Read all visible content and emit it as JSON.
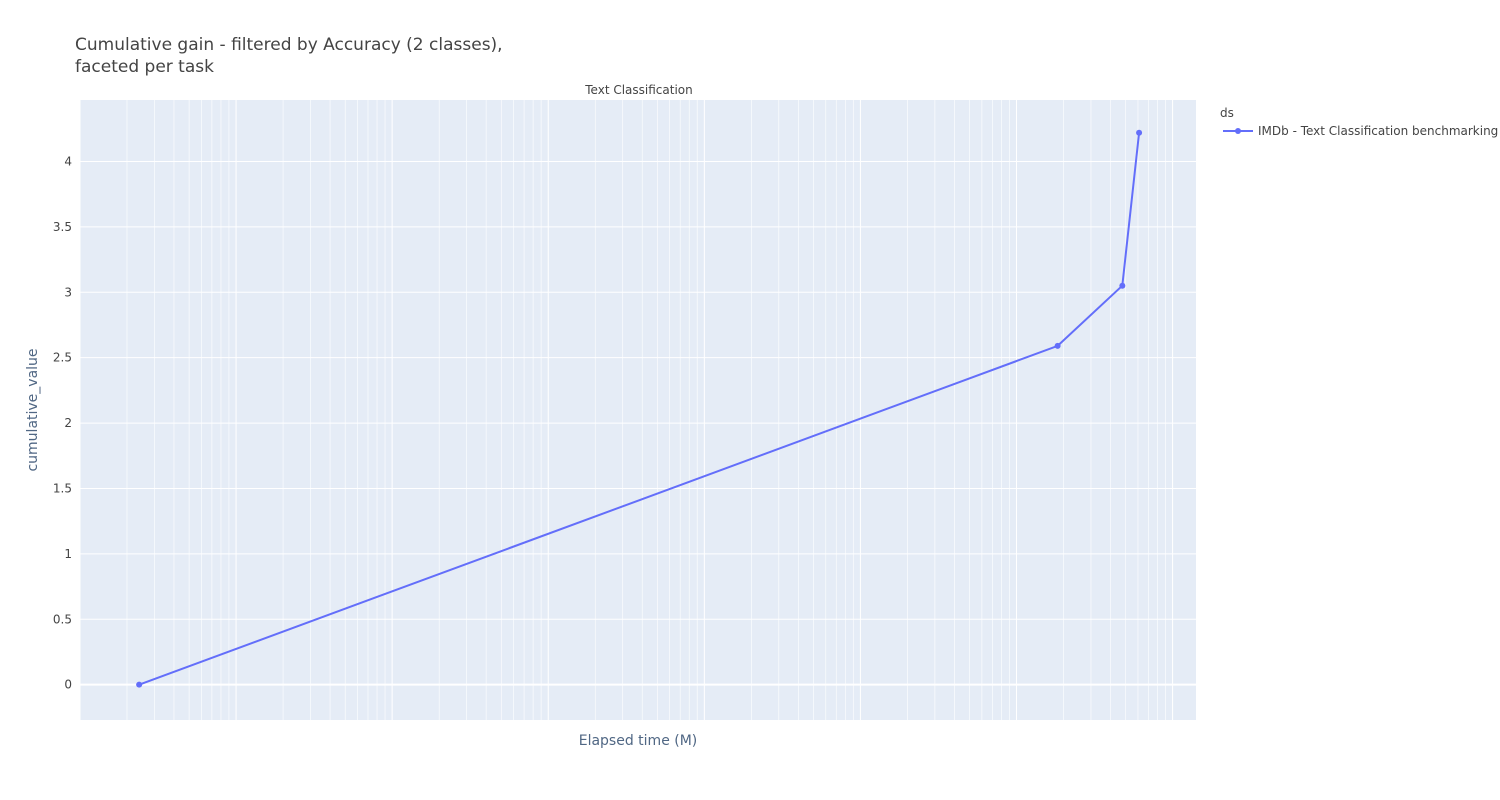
{
  "chart_data": {
    "type": "line",
    "title_lines": [
      "Cumulative gain - filtered by Accuracy (2 classes),",
      "faceted per task"
    ],
    "facet_title": "Text Classification",
    "xlabel": "Elapsed time (M)",
    "ylabel": "cumulative_value",
    "ylim": [
      -0.27,
      4.47
    ],
    "yticks": [
      0,
      0.5,
      1,
      1.5,
      2,
      2.5,
      3,
      3.5,
      4
    ],
    "xlim": [
      0,
      100
    ],
    "x_ticks_labeled": false,
    "grid": true,
    "legend": {
      "title": "ds",
      "placement": "top-right"
    },
    "series": [
      {
        "name": "IMDb - Text Classification benchmarking",
        "color": "#636efa",
        "x": [
          5.3,
          87.6,
          93.4,
          94.9
        ],
        "y": [
          0,
          2.59,
          3.05,
          4.22
        ]
      }
    ]
  }
}
